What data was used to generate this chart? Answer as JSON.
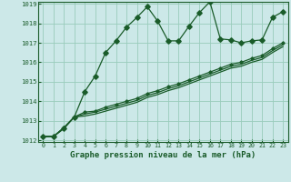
{
  "xlabel": "Graphe pression niveau de la mer (hPa)",
  "bg_color": "#cce8e8",
  "grid_color": "#99ccbb",
  "line_color": "#1a5c2a",
  "x": [
    0,
    1,
    2,
    3,
    4,
    5,
    6,
    7,
    8,
    9,
    10,
    11,
    12,
    13,
    14,
    15,
    16,
    17,
    18,
    19,
    20,
    21,
    22,
    23
  ],
  "series1": [
    1012.2,
    1012.2,
    1012.6,
    1013.2,
    1014.5,
    1015.3,
    1016.5,
    1017.1,
    1017.8,
    1018.3,
    1018.85,
    1018.1,
    1017.1,
    1017.1,
    1017.85,
    1018.55,
    1019.1,
    1017.2,
    1017.15,
    1017.0,
    1017.1,
    1017.15,
    1018.3,
    1018.6
  ],
  "series2": [
    1012.2,
    1012.2,
    1012.65,
    1013.2,
    1013.45,
    1013.5,
    1013.7,
    1013.85,
    1014.0,
    1014.15,
    1014.4,
    1014.55,
    1014.75,
    1014.9,
    1015.1,
    1015.3,
    1015.5,
    1015.7,
    1015.9,
    1016.0,
    1016.2,
    1016.35,
    1016.7,
    1017.0
  ],
  "series3": [
    1012.2,
    1012.2,
    1012.65,
    1013.2,
    1013.35,
    1013.45,
    1013.6,
    1013.75,
    1013.9,
    1014.05,
    1014.3,
    1014.45,
    1014.65,
    1014.8,
    1015.0,
    1015.2,
    1015.4,
    1015.6,
    1015.8,
    1015.9,
    1016.1,
    1016.25,
    1016.6,
    1016.9
  ],
  "series4": [
    1012.2,
    1012.2,
    1012.65,
    1013.2,
    1013.25,
    1013.35,
    1013.5,
    1013.65,
    1013.8,
    1013.95,
    1014.2,
    1014.35,
    1014.55,
    1014.7,
    1014.9,
    1015.1,
    1015.3,
    1015.5,
    1015.7,
    1015.8,
    1016.0,
    1016.15,
    1016.5,
    1016.8
  ],
  "ylim_min": 1012,
  "ylim_max": 1019,
  "yticks": [
    1012,
    1013,
    1014,
    1015,
    1016,
    1017,
    1018,
    1019
  ],
  "xticks": [
    0,
    1,
    2,
    3,
    4,
    5,
    6,
    7,
    8,
    9,
    10,
    11,
    12,
    13,
    14,
    15,
    16,
    17,
    18,
    19,
    20,
    21,
    22,
    23
  ]
}
